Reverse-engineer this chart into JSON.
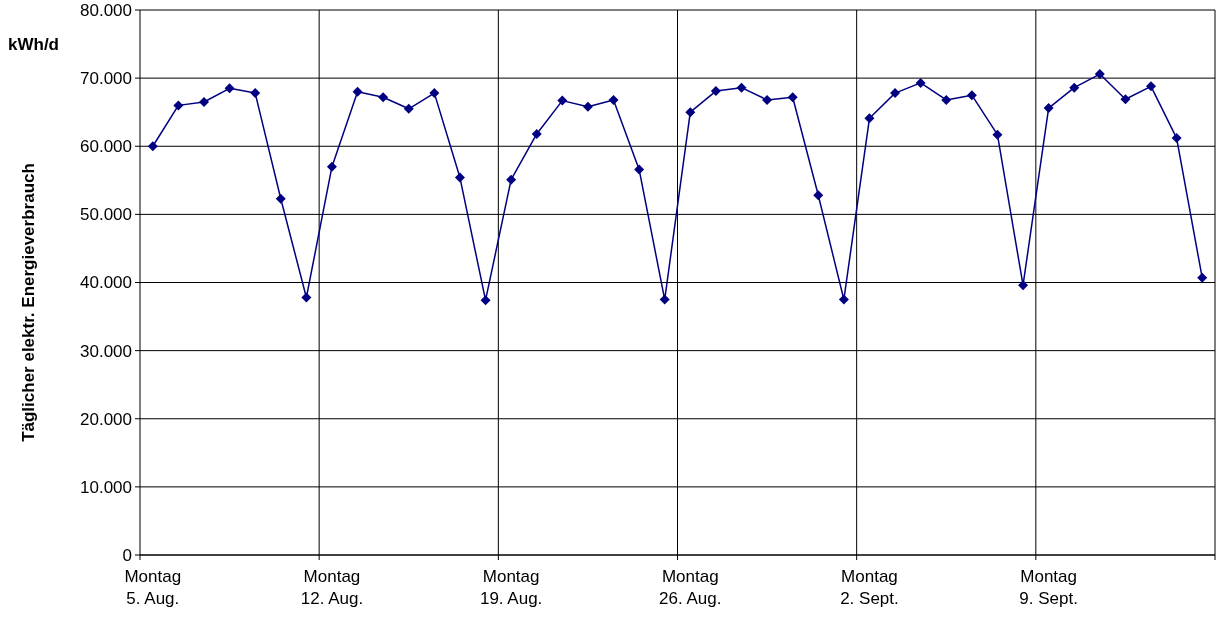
{
  "chart_data": {
    "type": "line",
    "ylabel": "Täglicher elektr. Energieverbrauch",
    "annotations": [
      "kWh/d"
    ],
    "categories": [
      "Montag\n5. Aug.",
      null,
      null,
      null,
      null,
      null,
      null,
      "Montag\n12. Aug.",
      null,
      null,
      null,
      null,
      null,
      null,
      "Montag\n19. Aug.",
      null,
      null,
      null,
      null,
      null,
      null,
      "Montag\n26. Aug.",
      null,
      null,
      null,
      null,
      null,
      null,
      "Montag\n2. Sept.",
      null,
      null,
      null,
      null,
      null,
      null,
      "Montag\n9. Sept.",
      null,
      null,
      null,
      null,
      null,
      null
    ],
    "series": [
      {
        "color": "#000080",
        "values": [
          60000,
          66000,
          66500,
          68500,
          67800,
          52300,
          37800,
          57000,
          68000,
          67200,
          65500,
          67800,
          55400,
          37400,
          55100,
          61800,
          66700,
          65800,
          66800,
          56600,
          37500,
          65000,
          68100,
          68600,
          66800,
          67200,
          52800,
          37500,
          64100,
          67800,
          69300,
          66800,
          67500,
          61700,
          39600,
          65600,
          68600,
          70600,
          66900,
          68800,
          61200,
          40700
        ]
      }
    ],
    "ylim": [
      0,
      80000
    ],
    "yticks": [
      {
        "value": 0,
        "label": "0"
      },
      {
        "value": 10000,
        "label": "10.000"
      },
      {
        "value": 20000,
        "label": "20.000"
      },
      {
        "value": 30000,
        "label": "30.000"
      },
      {
        "value": 40000,
        "label": "40.000"
      },
      {
        "value": 50000,
        "label": "50.000"
      },
      {
        "value": 60000,
        "label": "60.000"
      },
      {
        "value": 70000,
        "label": "70.000"
      },
      {
        "value": 80000,
        "label": "80.000"
      }
    ],
    "grid": true,
    "marker": "diamond",
    "line_style": "solid"
  }
}
